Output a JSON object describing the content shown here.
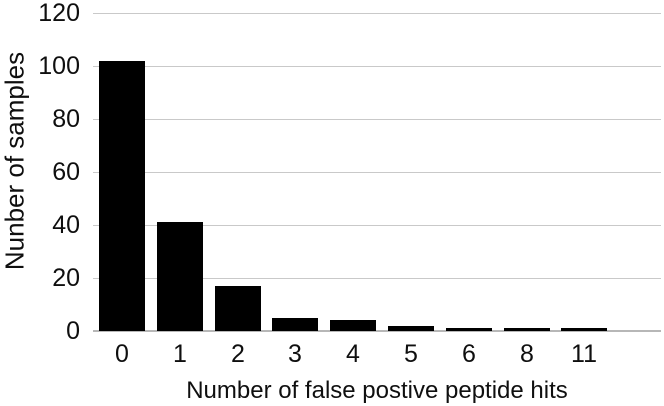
{
  "chart_data": {
    "type": "bar",
    "title": "",
    "categories": [
      "0",
      "1",
      "2",
      "3",
      "4",
      "5",
      "6",
      "8",
      "11"
    ],
    "values": [
      102,
      41,
      17,
      5,
      4,
      2,
      1,
      1,
      1
    ],
    "xlabel": "Number of false postive peptide hits",
    "ylabel": "Nunber of samples",
    "yticks": [
      0,
      20,
      40,
      60,
      80,
      100,
      120
    ],
    "ylim": [
      0,
      120
    ],
    "grid": "horizontal",
    "legend": "none",
    "colors": {
      "bar": "#000000",
      "gridline": "#c9c9c9",
      "axis_line": "#b7b7b7",
      "text": "#0f0f0f",
      "background": "#ffffff"
    }
  }
}
